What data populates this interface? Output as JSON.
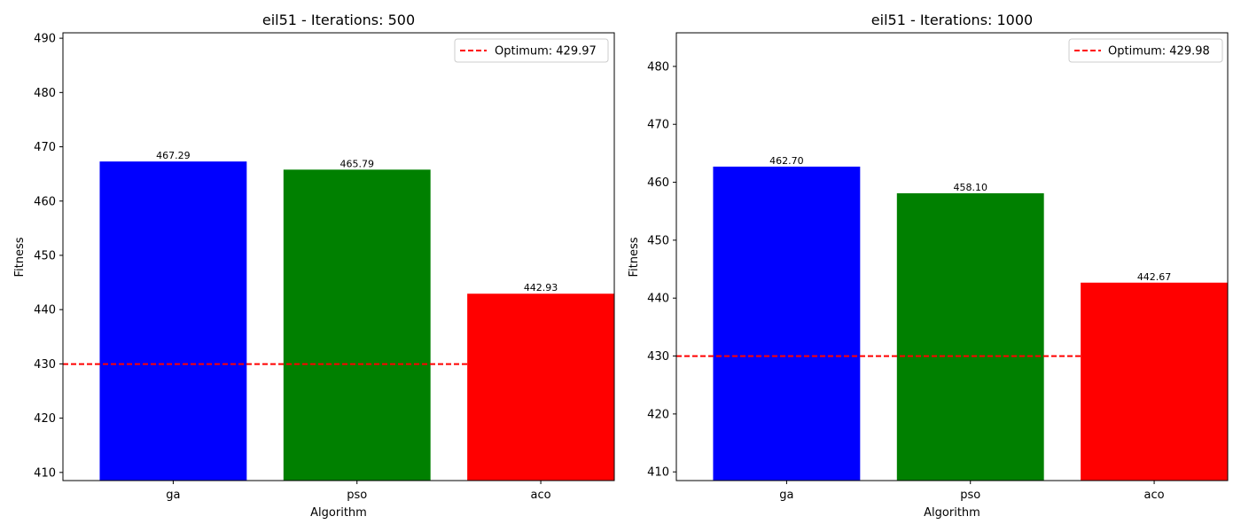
{
  "chart_data": [
    {
      "type": "bar",
      "title": "eil51 - Iterations: 500",
      "xlabel": "Algorithm",
      "ylabel": "Fitness",
      "categories": [
        "ga",
        "pso",
        "aco"
      ],
      "values": [
        467.29,
        465.79,
        442.93
      ],
      "value_labels": [
        "467.29",
        "465.79",
        "442.93"
      ],
      "colors": [
        "#0000ff",
        "#008000",
        "#ff0000"
      ],
      "ylim": [
        408.5,
        491
      ],
      "yticks": [
        410,
        420,
        430,
        440,
        450,
        460,
        470,
        480,
        490
      ],
      "reference_line": {
        "label": "Optimum: 429.97",
        "value": 429.97,
        "color": "#ff0000",
        "style": "dashed"
      },
      "legend_position": "upper right",
      "grid": false
    },
    {
      "type": "bar",
      "title": "eil51 - Iterations: 1000",
      "xlabel": "Algorithm",
      "ylabel": "Fitness",
      "categories": [
        "ga",
        "pso",
        "aco"
      ],
      "values": [
        462.7,
        458.1,
        442.67
      ],
      "value_labels": [
        "462.70",
        "458.10",
        "442.67"
      ],
      "colors": [
        "#0000ff",
        "#008000",
        "#ff0000"
      ],
      "ylim": [
        408.5,
        485.8
      ],
      "yticks": [
        410,
        420,
        430,
        440,
        450,
        460,
        470,
        480
      ],
      "reference_line": {
        "label": "Optimum: 429.98",
        "value": 429.98,
        "color": "#ff0000",
        "style": "dashed"
      },
      "legend_position": "upper right",
      "grid": false
    }
  ]
}
